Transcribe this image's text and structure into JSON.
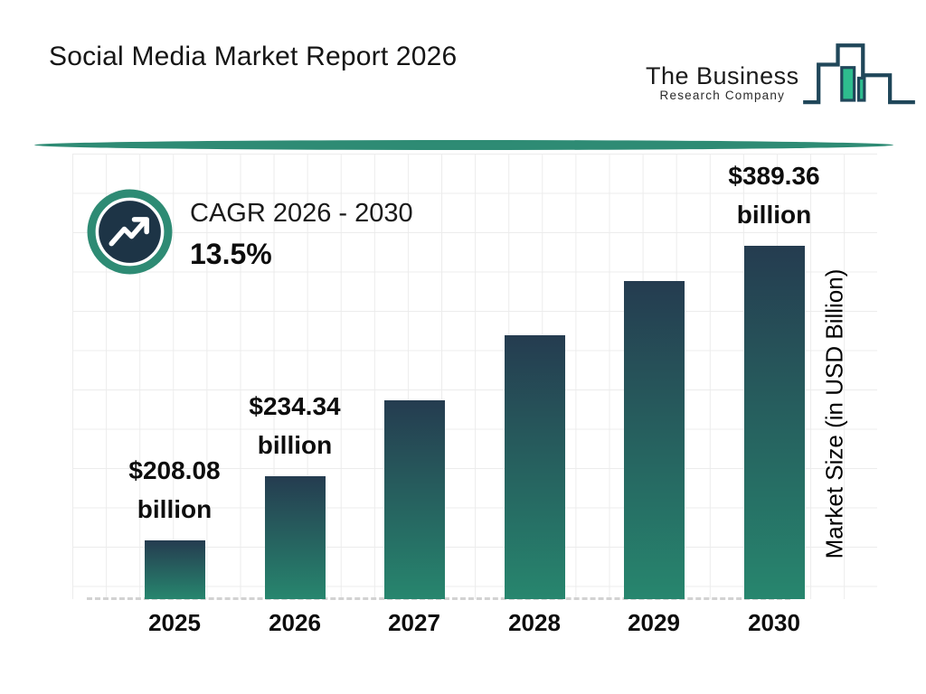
{
  "header": {
    "title": "Social Media Market Report 2026",
    "logo": {
      "name_line1": "The Business",
      "name_line2": "Research Company"
    }
  },
  "cagr_badge": {
    "label": "CAGR 2026 - 2030",
    "value": "13.5%"
  },
  "colors": {
    "accent_teal": "#2e8b74",
    "navy_disc": "#1d3446",
    "bar_gradient_top": "#253c50",
    "bar_gradient_bottom": "#27866e",
    "logo_outline": "#20475a",
    "logo_green": "#2ebd8e",
    "grid_line": "#ececec",
    "baseline_dash": "#d2d2d2"
  },
  "chart_data": {
    "type": "bar",
    "title": "Social Media Market Report 2026",
    "xlabel": "",
    "ylabel": "Market Size (in USD Billion)",
    "categories": [
      "2025",
      "2026",
      "2027",
      "2028",
      "2029",
      "2030"
    ],
    "values": [
      208.08,
      234.34,
      265.97,
      301.88,
      342.63,
      389.36
    ],
    "value_labels": [
      [
        "$208.08",
        "billion"
      ],
      [
        "$234.34",
        "billion"
      ],
      null,
      null,
      null,
      [
        "$389.36",
        "billion"
      ]
    ],
    "units": "USD Billion",
    "cagr": "13.5%",
    "cagr_period": "2026 - 2030",
    "grid": true,
    "baseline_style": "dashed",
    "legend": "none",
    "bar_height_fractions": [
      0.132,
      0.276,
      0.447,
      0.593,
      0.715,
      0.794
    ]
  }
}
